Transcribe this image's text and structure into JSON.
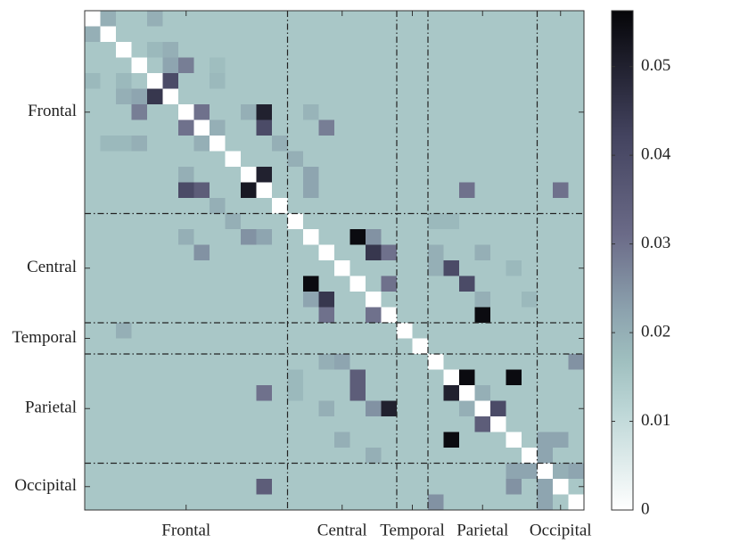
{
  "chart_data": {
    "type": "heatmap",
    "xlim": [
      0,
      32
    ],
    "ylim": [
      32,
      0
    ],
    "xticks": [
      {
        "value": 6.5,
        "label": "Frontal"
      },
      {
        "value": 16.5,
        "label": "Central"
      },
      {
        "value": 21,
        "label": "Temporal"
      },
      {
        "value": 25.5,
        "label": "Parietal"
      },
      {
        "value": 30.5,
        "label": "Occipital"
      }
    ],
    "yticks": [
      {
        "value": 6.5,
        "label": "Frontal"
      },
      {
        "value": 16.5,
        "label": "Central"
      },
      {
        "value": 21,
        "label": "Temporal"
      },
      {
        "value": 25.5,
        "label": "Parietal"
      },
      {
        "value": 30.5,
        "label": "Occipital"
      }
    ],
    "dividers": [
      13,
      20,
      22,
      29
    ],
    "colorbar": {
      "lim": [
        0,
        0.0563
      ],
      "ticks": [
        0,
        0.01,
        0.02,
        0.03,
        0.04,
        0.05
      ]
    },
    "z": [
      [
        0,
        0.02,
        0.015,
        0.015,
        0.02,
        0.015,
        0.015,
        0.015,
        0.015,
        0.015,
        0.015,
        0.015,
        0.015,
        0.015,
        0.015,
        0.015,
        0.015,
        0.015,
        0.015,
        0.015,
        0.015,
        0.015,
        0.015,
        0.015,
        0.015,
        0.015,
        0.015,
        0.015,
        0.015,
        0.015,
        0.015,
        0.015
      ],
      [
        0.02,
        0,
        0.015,
        0.015,
        0.015,
        0.015,
        0.015,
        0.015,
        0.015,
        0.015,
        0.015,
        0.015,
        0.015,
        0.015,
        0.015,
        0.015,
        0.015,
        0.015,
        0.015,
        0.015,
        0.015,
        0.015,
        0.015,
        0.015,
        0.015,
        0.015,
        0.015,
        0.015,
        0.015,
        0.015,
        0.015,
        0.015
      ],
      [
        0.015,
        0.015,
        0,
        0.015,
        0.018,
        0.02,
        0.015,
        0.015,
        0.015,
        0.015,
        0.015,
        0.015,
        0.015,
        0.015,
        0.015,
        0.015,
        0.015,
        0.015,
        0.015,
        0.015,
        0.015,
        0.015,
        0.015,
        0.015,
        0.015,
        0.015,
        0.015,
        0.015,
        0.015,
        0.015,
        0.015,
        0.015
      ],
      [
        0.015,
        0.015,
        0.015,
        0,
        0.015,
        0.022,
        0.028,
        0.015,
        0.017,
        0.015,
        0.015,
        0.015,
        0.015,
        0.015,
        0.015,
        0.015,
        0.015,
        0.015,
        0.015,
        0.015,
        0.015,
        0.015,
        0.015,
        0.015,
        0.015,
        0.015,
        0.015,
        0.015,
        0.015,
        0.015,
        0.015,
        0.015
      ],
      [
        0.018,
        0.015,
        0.018,
        0.015,
        0,
        0.04,
        0.015,
        0.015,
        0.018,
        0.015,
        0.015,
        0.015,
        0.015,
        0.015,
        0.015,
        0.015,
        0.015,
        0.015,
        0.015,
        0.015,
        0.015,
        0.015,
        0.015,
        0.015,
        0.015,
        0.015,
        0.015,
        0.015,
        0.015,
        0.015,
        0.015,
        0.015
      ],
      [
        0.015,
        0.015,
        0.02,
        0.022,
        0.045,
        0,
        0.015,
        0.015,
        0.015,
        0.015,
        0.015,
        0.015,
        0.015,
        0.015,
        0.015,
        0.015,
        0.015,
        0.015,
        0.015,
        0.015,
        0.015,
        0.015,
        0.015,
        0.015,
        0.015,
        0.015,
        0.015,
        0.015,
        0.015,
        0.015,
        0.015,
        0.015
      ],
      [
        0.015,
        0.015,
        0.015,
        0.028,
        0.015,
        0.015,
        0,
        0.03,
        0.015,
        0.015,
        0.02,
        0.05,
        0.015,
        0.015,
        0.019,
        0.015,
        0.015,
        0.015,
        0.015,
        0.015,
        0.015,
        0.015,
        0.015,
        0.015,
        0.015,
        0.015,
        0.015,
        0.015,
        0.015,
        0.015,
        0.015,
        0.015
      ],
      [
        0.015,
        0.015,
        0.015,
        0.015,
        0.015,
        0.015,
        0.03,
        0,
        0.02,
        0.015,
        0.015,
        0.04,
        0.015,
        0.015,
        0.015,
        0.028,
        0.015,
        0.015,
        0.015,
        0.015,
        0.015,
        0.015,
        0.015,
        0.015,
        0.015,
        0.015,
        0.015,
        0.015,
        0.015,
        0.015,
        0.015,
        0.015
      ],
      [
        0.015,
        0.018,
        0.018,
        0.02,
        0.015,
        0.015,
        0.015,
        0.02,
        0,
        0.015,
        0.015,
        0.015,
        0.02,
        0.015,
        0.015,
        0.015,
        0.015,
        0.015,
        0.015,
        0.015,
        0.015,
        0.015,
        0.015,
        0.015,
        0.015,
        0.015,
        0.015,
        0.015,
        0.015,
        0.015,
        0.015,
        0.015
      ],
      [
        0.015,
        0.015,
        0.015,
        0.015,
        0.015,
        0.015,
        0.015,
        0.015,
        0.015,
        0,
        0.015,
        0.015,
        0.015,
        0.02,
        0.015,
        0.015,
        0.015,
        0.015,
        0.015,
        0.015,
        0.015,
        0.015,
        0.015,
        0.015,
        0.015,
        0.015,
        0.015,
        0.015,
        0.015,
        0.015,
        0.015,
        0.015
      ],
      [
        0.015,
        0.015,
        0.015,
        0.015,
        0.015,
        0.015,
        0.02,
        0.015,
        0.015,
        0.015,
        0,
        0.05,
        0.015,
        0.015,
        0.022,
        0.015,
        0.015,
        0.015,
        0.015,
        0.015,
        0.015,
        0.015,
        0.015,
        0.015,
        0.015,
        0.015,
        0.015,
        0.015,
        0.015,
        0.015,
        0.015,
        0.015
      ],
      [
        0.015,
        0.015,
        0.015,
        0.015,
        0.015,
        0.015,
        0.04,
        0.035,
        0.015,
        0.015,
        0.052,
        0,
        0.015,
        0.015,
        0.022,
        0.015,
        0.015,
        0.015,
        0.015,
        0.015,
        0.015,
        0.015,
        0.015,
        0.015,
        0.03,
        0.015,
        0.015,
        0.015,
        0.015,
        0.015,
        0.03,
        0.015
      ],
      [
        0.015,
        0.015,
        0.015,
        0.015,
        0.015,
        0.015,
        0.015,
        0.015,
        0.02,
        0.015,
        0.015,
        0.015,
        0,
        0.015,
        0.015,
        0.015,
        0.015,
        0.015,
        0.015,
        0.015,
        0.015,
        0.015,
        0.015,
        0.015,
        0.015,
        0.015,
        0.015,
        0.015,
        0.015,
        0.015,
        0.015,
        0.015
      ],
      [
        0.015,
        0.015,
        0.015,
        0.015,
        0.015,
        0.015,
        0.015,
        0.015,
        0.015,
        0.02,
        0.015,
        0.015,
        0.015,
        0,
        0.015,
        0.015,
        0.015,
        0.015,
        0.015,
        0.015,
        0.015,
        0.015,
        0.018,
        0.018,
        0.015,
        0.015,
        0.015,
        0.015,
        0.015,
        0.015,
        0.015,
        0.015
      ],
      [
        0.015,
        0.015,
        0.015,
        0.015,
        0.015,
        0.015,
        0.02,
        0.015,
        0.015,
        0.015,
        0.025,
        0.022,
        0.015,
        0.015,
        0,
        0.015,
        0.015,
        0.055,
        0.025,
        0.015,
        0.015,
        0.015,
        0.015,
        0.015,
        0.015,
        0.015,
        0.015,
        0.015,
        0.015,
        0.015,
        0.015,
        0.015
      ],
      [
        0.015,
        0.015,
        0.015,
        0.015,
        0.015,
        0.015,
        0.015,
        0.025,
        0.015,
        0.015,
        0.015,
        0.015,
        0.015,
        0.015,
        0.015,
        0,
        0.015,
        0.015,
        0.045,
        0.03,
        0.015,
        0.015,
        0.02,
        0.015,
        0.015,
        0.02,
        0.015,
        0.015,
        0.015,
        0.015,
        0.015,
        0.015
      ],
      [
        0.015,
        0.015,
        0.015,
        0.015,
        0.015,
        0.015,
        0.015,
        0.015,
        0.015,
        0.015,
        0.015,
        0.015,
        0.015,
        0.015,
        0.015,
        0.015,
        0,
        0.015,
        0.015,
        0.015,
        0.015,
        0.015,
        0.02,
        0.04,
        0.015,
        0.015,
        0.015,
        0.018,
        0.015,
        0.015,
        0.015,
        0.015
      ],
      [
        0.015,
        0.015,
        0.015,
        0.015,
        0.015,
        0.015,
        0.015,
        0.015,
        0.015,
        0.015,
        0.015,
        0.015,
        0.015,
        0.015,
        0.055,
        0.015,
        0.015,
        0,
        0.015,
        0.03,
        0.015,
        0.015,
        0.015,
        0.015,
        0.04,
        0.015,
        0.015,
        0.015,
        0.015,
        0.015,
        0.015,
        0.015
      ],
      [
        0.015,
        0.015,
        0.015,
        0.015,
        0.015,
        0.015,
        0.015,
        0.015,
        0.015,
        0.015,
        0.015,
        0.015,
        0.015,
        0.015,
        0.022,
        0.045,
        0.015,
        0.015,
        0,
        0.015,
        0.015,
        0.015,
        0.015,
        0.015,
        0.015,
        0.02,
        0.015,
        0.015,
        0.018,
        0.015,
        0.015,
        0.015
      ],
      [
        0.015,
        0.015,
        0.015,
        0.015,
        0.015,
        0.015,
        0.015,
        0.015,
        0.015,
        0.015,
        0.015,
        0.015,
        0.015,
        0.015,
        0.015,
        0.03,
        0.015,
        0.015,
        0.03,
        0,
        0.015,
        0.015,
        0.015,
        0.015,
        0.015,
        0.055,
        0.015,
        0.015,
        0.015,
        0.015,
        0.015,
        0.015
      ],
      [
        0.015,
        0.015,
        0.02,
        0.015,
        0.015,
        0.015,
        0.015,
        0.015,
        0.015,
        0.015,
        0.015,
        0.015,
        0.015,
        0.015,
        0.015,
        0.015,
        0.015,
        0.015,
        0.015,
        0.015,
        0,
        0.015,
        0.015,
        0.015,
        0.015,
        0.015,
        0.015,
        0.015,
        0.015,
        0.015,
        0.015,
        0.015
      ],
      [
        0.015,
        0.015,
        0.015,
        0.015,
        0.015,
        0.015,
        0.015,
        0.015,
        0.015,
        0.015,
        0.015,
        0.015,
        0.015,
        0.015,
        0.015,
        0.015,
        0.015,
        0.015,
        0.015,
        0.015,
        0.015,
        0,
        0.015,
        0.015,
        0.015,
        0.015,
        0.015,
        0.015,
        0.015,
        0.015,
        0.015,
        0.015
      ],
      [
        0.015,
        0.015,
        0.015,
        0.015,
        0.015,
        0.015,
        0.015,
        0.015,
        0.015,
        0.015,
        0.015,
        0.015,
        0.015,
        0.015,
        0.015,
        0.02,
        0.022,
        0.015,
        0.015,
        0.015,
        0.015,
        0.015,
        0,
        0.015,
        0.015,
        0.015,
        0.015,
        0.015,
        0.015,
        0.015,
        0.015,
        0.025
      ],
      [
        0.015,
        0.015,
        0.015,
        0.015,
        0.015,
        0.015,
        0.015,
        0.015,
        0.015,
        0.015,
        0.015,
        0.015,
        0.015,
        0.018,
        0.015,
        0.015,
        0.015,
        0.035,
        0.015,
        0.015,
        0.015,
        0.015,
        0.015,
        0,
        0.055,
        0.015,
        0.015,
        0.055,
        0.015,
        0.015,
        0.015,
        0.015
      ],
      [
        0.015,
        0.015,
        0.015,
        0.015,
        0.015,
        0.015,
        0.015,
        0.015,
        0.015,
        0.015,
        0.015,
        0.03,
        0.015,
        0.018,
        0.015,
        0.015,
        0.015,
        0.035,
        0.015,
        0.015,
        0.015,
        0.015,
        0.015,
        0.05,
        0,
        0.02,
        0.015,
        0.015,
        0.015,
        0.015,
        0.015,
        0.015
      ],
      [
        0.015,
        0.015,
        0.015,
        0.015,
        0.015,
        0.015,
        0.015,
        0.015,
        0.015,
        0.015,
        0.015,
        0.015,
        0.015,
        0.015,
        0.015,
        0.02,
        0.015,
        0.015,
        0.025,
        0.05,
        0.015,
        0.015,
        0.015,
        0.015,
        0.02,
        0,
        0.04,
        0.015,
        0.015,
        0.015,
        0.015,
        0.015
      ],
      [
        0.015,
        0.015,
        0.015,
        0.015,
        0.015,
        0.015,
        0.015,
        0.015,
        0.015,
        0.015,
        0.015,
        0.015,
        0.015,
        0.015,
        0.015,
        0.015,
        0.015,
        0.015,
        0.015,
        0.015,
        0.015,
        0.015,
        0.015,
        0.015,
        0.015,
        0.035,
        0,
        0.015,
        0.015,
        0.015,
        0.015,
        0.015
      ],
      [
        0.015,
        0.015,
        0.015,
        0.015,
        0.015,
        0.015,
        0.015,
        0.015,
        0.015,
        0.015,
        0.015,
        0.015,
        0.015,
        0.015,
        0.015,
        0.015,
        0.02,
        0.015,
        0.015,
        0.015,
        0.015,
        0.015,
        0.015,
        0.055,
        0.015,
        0.015,
        0.015,
        0,
        0.015,
        0.022,
        0.022,
        0.015
      ],
      [
        0.015,
        0.015,
        0.015,
        0.015,
        0.015,
        0.015,
        0.015,
        0.015,
        0.015,
        0.015,
        0.015,
        0.015,
        0.015,
        0.015,
        0.015,
        0.015,
        0.015,
        0.015,
        0.02,
        0.015,
        0.015,
        0.015,
        0.015,
        0.015,
        0.015,
        0.015,
        0.015,
        0.015,
        0,
        0.022,
        0.015,
        0.015
      ],
      [
        0.015,
        0.015,
        0.015,
        0.015,
        0.015,
        0.015,
        0.015,
        0.015,
        0.015,
        0.015,
        0.015,
        0.015,
        0.015,
        0.015,
        0.015,
        0.015,
        0.015,
        0.015,
        0.015,
        0.015,
        0.015,
        0.015,
        0.015,
        0.015,
        0.015,
        0.015,
        0.015,
        0.022,
        0.022,
        0,
        0.02,
        0.022
      ],
      [
        0.015,
        0.015,
        0.015,
        0.015,
        0.015,
        0.015,
        0.015,
        0.015,
        0.015,
        0.015,
        0.015,
        0.035,
        0.015,
        0.015,
        0.015,
        0.015,
        0.015,
        0.015,
        0.015,
        0.015,
        0.015,
        0.015,
        0.015,
        0.015,
        0.015,
        0.015,
        0.015,
        0.025,
        0.015,
        0.022,
        0,
        0.015
      ],
      [
        0.015,
        0.015,
        0.015,
        0.015,
        0.015,
        0.015,
        0.015,
        0.015,
        0.015,
        0.015,
        0.015,
        0.015,
        0.015,
        0.015,
        0.015,
        0.015,
        0.015,
        0.015,
        0.015,
        0.015,
        0.015,
        0.015,
        0.025,
        0.015,
        0.015,
        0.015,
        0.015,
        0.015,
        0.015,
        0.022,
        0.015,
        0
      ]
    ]
  }
}
